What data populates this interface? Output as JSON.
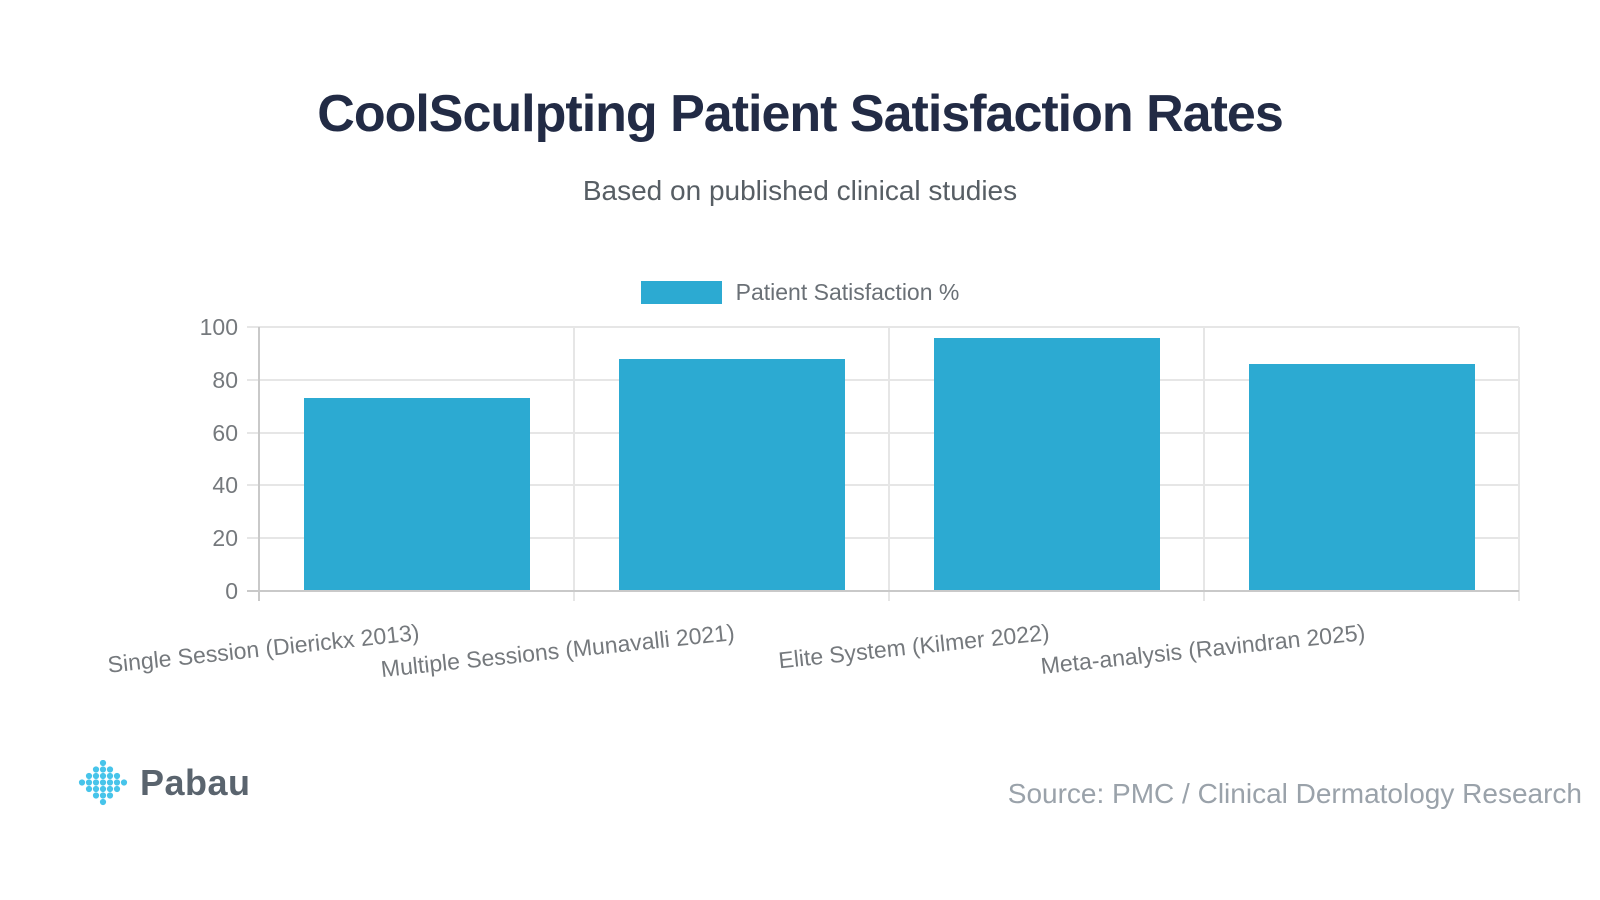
{
  "header": {
    "title": "CoolSculpting Patient Satisfaction Rates",
    "subtitle": "Based on published clinical studies"
  },
  "chart_data": {
    "type": "bar",
    "title": "CoolSculpting Patient Satisfaction Rates",
    "subtitle": "Based on published clinical studies",
    "categories": [
      "Single Session (Dierickx 2013)",
      "Multiple Sessions (Munavalli 2021)",
      "Elite System (Kilmer 2022)",
      "Meta-analysis (Ravindran 2025)"
    ],
    "series": [
      {
        "name": "Patient Satisfaction %",
        "values": [
          73,
          88,
          96,
          86
        ]
      }
    ],
    "ylim": [
      0,
      100
    ],
    "yticks": [
      0,
      20,
      40,
      60,
      80,
      100
    ],
    "grid": true,
    "legend_position": "top-center",
    "bar_color": "#2caad2"
  },
  "footer": {
    "brand": "Pabau",
    "source": "Source: PMC / Clinical Dermatology Research"
  },
  "colors": {
    "bar": "#2caad2",
    "logo_dots": "#47c4ea",
    "title_text": "#222b45"
  }
}
